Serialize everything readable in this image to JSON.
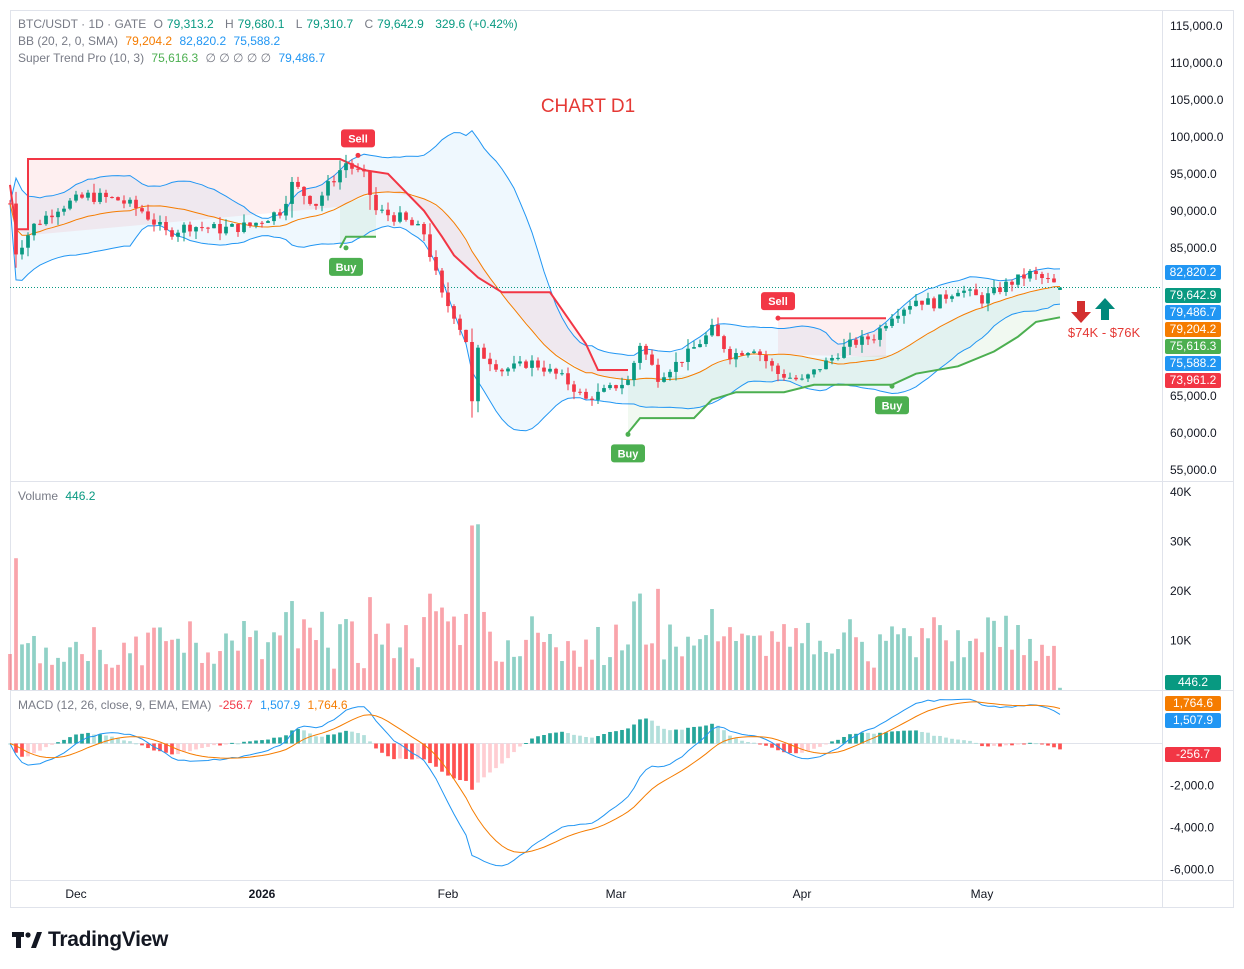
{
  "symbol_header": {
    "symbol": "BTC/USDT · 1D · GATE",
    "open_label": "O",
    "open": "79,313.2",
    "high_label": "H",
    "high": "79,680.1",
    "low_label": "L",
    "low": "79,310.7",
    "close_label": "C",
    "close": "79,642.9",
    "change": "329.6 (+0.42%)"
  },
  "bb_legend": {
    "name": "BB (20, 2, 0, SMA)",
    "basis": "79,204.2",
    "upper": "82,820.2",
    "lower": "75,588.2"
  },
  "st_legend": {
    "name": "Super Trend Pro (10, 3)",
    "value": "75,616.3",
    "dots": "∅ ∅ ∅ ∅ ∅",
    "value2": "79,486.7"
  },
  "annotation_title": "CHART D1",
  "signals": {
    "sell_1": "Sell",
    "sell_2": "Sell",
    "buy_1": "Buy",
    "buy_2": "Buy",
    "buy_3": "Buy"
  },
  "target_range": "$74K - $76K",
  "price_tags": [
    {
      "value": "82,820.2",
      "color": "#2196f3"
    },
    {
      "value": "79,642.9",
      "color": "#089981"
    },
    {
      "value": "79,486.7",
      "color": "#2196f3"
    },
    {
      "value": "79,204.2",
      "color": "#f57c00"
    },
    {
      "value": "75,616.3",
      "color": "#4caf50"
    },
    {
      "value": "75,588.2",
      "color": "#2196f3"
    },
    {
      "value": "73,961.2",
      "color": "#f23645"
    }
  ],
  "volume_legend": {
    "name": "Volume",
    "value": "446.2"
  },
  "volume_tag": "446.2",
  "macd_legend": {
    "name": "MACD (12, 26, close, 9, EMA, EMA)",
    "hist": "-256.7",
    "macd": "1,507.9",
    "signal": "1,764.6"
  },
  "macd_tags": {
    "signal": "1,764.6",
    "macd": "1,507.9",
    "hist": "-256.7"
  },
  "branding": {
    "logo_text": "TradingView"
  },
  "colors": {
    "up": "#089981",
    "down": "#f23645",
    "bb": "#2196f3",
    "basis": "#f57c00",
    "supertrend_up": "#4caf50",
    "supertrend_down": "#f23645",
    "macd": "#2196f3",
    "signal": "#f57c00"
  },
  "chart_data": [
    {
      "type": "candlestick",
      "title": "BTC/USDT · 1D · GATE",
      "y_axis_ticks": [
        "115,000.0",
        "110,000.0",
        "105,000.0",
        "100,000.0",
        "95,000.0",
        "90,000.0",
        "85,000.0",
        "65,000.0",
        "60,000.0",
        "55,000.0"
      ],
      "y_axis_tick_values": [
        115000,
        110000,
        105000,
        100000,
        95000,
        90000,
        85000,
        65000,
        60000,
        55000
      ],
      "ylim": [
        53500,
        117000
      ],
      "x_axis_ticks": [
        "Dec",
        "2026",
        "Feb",
        "Mar",
        "Apr",
        "May"
      ],
      "x_axis_tick_dates": [
        "2025-12-01",
        "2026-01-01",
        "2026-02-01",
        "2026-03-01",
        "2026-04-01",
        "2026-05-01"
      ],
      "xlim_dates": [
        "2025-11-20",
        "2026-05-31"
      ],
      "last_date": "2026-05-14",
      "close_series_anchors": [
        [
          "2025-11-20",
          91000
        ],
        [
          "2025-11-21",
          84500
        ],
        [
          "2025-11-24",
          88000
        ],
        [
          "2025-11-28",
          90500
        ],
        [
          "2025-12-03",
          92000
        ],
        [
          "2025-12-08",
          91500
        ],
        [
          "2025-12-12",
          90000
        ],
        [
          "2025-12-16",
          87000
        ],
        [
          "2025-12-20",
          88000
        ],
        [
          "2025-12-25",
          87500
        ],
        [
          "2025-12-30",
          88000
        ],
        [
          "2026-01-04",
          90000
        ],
        [
          "2026-01-06",
          93500
        ],
        [
          "2026-01-10",
          91000
        ],
        [
          "2026-01-13",
          94500
        ],
        [
          "2026-01-15",
          96500
        ],
        [
          "2026-01-18",
          94500
        ],
        [
          "2026-01-20",
          90000
        ],
        [
          "2026-01-24",
          89000
        ],
        [
          "2026-01-28",
          87000
        ],
        [
          "2026-01-31",
          78500
        ],
        [
          "2026-02-02",
          76000
        ],
        [
          "2026-02-04",
          72500
        ],
        [
          "2026-02-05",
          64000
        ],
        [
          "2026-02-06",
          71000
        ],
        [
          "2026-02-10",
          68500
        ],
        [
          "2026-02-15",
          69500
        ],
        [
          "2026-02-20",
          67500
        ],
        [
          "2026-02-24",
          64500
        ],
        [
          "2026-02-28",
          66000
        ],
        [
          "2026-03-03",
          67000
        ],
        [
          "2026-03-05",
          72000
        ],
        [
          "2026-03-08",
          67500
        ],
        [
          "2026-03-12",
          70000
        ],
        [
          "2026-03-16",
          73000
        ],
        [
          "2026-03-17",
          74000
        ],
        [
          "2026-03-20",
          70500
        ],
        [
          "2026-03-24",
          71500
        ],
        [
          "2026-03-28",
          68000
        ],
        [
          "2026-04-01",
          67000
        ],
        [
          "2026-04-05",
          69500
        ],
        [
          "2026-04-09",
          72000
        ],
        [
          "2026-04-13",
          73000
        ],
        [
          "2026-04-16",
          76000
        ],
        [
          "2026-04-20",
          78000
        ],
        [
          "2026-04-23",
          77500
        ],
        [
          "2026-04-27",
          79500
        ],
        [
          "2026-05-01",
          78000
        ],
        [
          "2026-05-05",
          80000
        ],
        [
          "2026-05-09",
          81500
        ],
        [
          "2026-05-12",
          80500
        ],
        [
          "2026-05-14",
          79642.9
        ]
      ],
      "supertrend_segments": [
        {
          "direction": "down",
          "points": [
            [
              "2025-11-20",
              93500
            ],
            [
              "2025-11-21",
              87500
            ],
            [
              "2025-11-23",
              87500
            ],
            [
              "2025-11-23",
              97000
            ],
            [
              "2026-01-14",
              97000
            ],
            [
              "2026-01-18",
              95500
            ],
            [
              "2026-01-22",
              95000
            ],
            [
              "2026-01-28",
              90000
            ],
            [
              "2026-01-31",
              86500
            ],
            [
              "2026-02-02",
              84000
            ],
            [
              "2026-02-06",
              81000
            ],
            [
              "2026-02-10",
              79000
            ],
            [
              "2026-02-18",
              79000
            ],
            [
              "2026-02-24",
              72000
            ],
            [
              "2026-02-26",
              68500
            ],
            [
              "2026-03-03",
              68500
            ]
          ]
        },
        {
          "direction": "up",
          "points": [
            [
              "2026-01-14",
              85000
            ],
            [
              "2026-01-15",
              86500
            ],
            [
              "2026-01-20",
              86500
            ]
          ]
        },
        {
          "direction": "up",
          "points": [
            [
              "2026-03-03",
              60000
            ],
            [
              "2026-03-05",
              62000
            ],
            [
              "2026-03-14",
              62000
            ],
            [
              "2026-03-17",
              64500
            ],
            [
              "2026-03-21",
              65500
            ],
            [
              "2026-03-29",
              65500
            ],
            [
              "2026-04-03",
              66500
            ],
            [
              "2026-04-16",
              66500
            ]
          ]
        },
        {
          "direction": "down",
          "points": [
            [
              "2026-03-28",
              75500
            ],
            [
              "2026-04-15",
              75500
            ]
          ]
        },
        {
          "direction": "up",
          "points": [
            [
              "2026-04-16",
              66500
            ],
            [
              "2026-04-20",
              68000
            ],
            [
              "2026-04-27",
              69000
            ],
            [
              "2026-05-03",
              71000
            ],
            [
              "2026-05-07",
              73000
            ],
            [
              "2026-05-10",
              75000
            ],
            [
              "2026-05-14",
              75616.3
            ]
          ]
        }
      ],
      "signals": [
        {
          "label": "Sell",
          "date": "2026-01-17",
          "price": 97500
        },
        {
          "label": "Buy",
          "date": "2026-01-15",
          "price": 85000
        },
        {
          "label": "Buy",
          "date": "2026-03-03",
          "price": 59800
        },
        {
          "label": "Sell",
          "date": "2026-03-28",
          "price": 75500
        },
        {
          "label": "Buy",
          "date": "2026-04-16",
          "price": 66300
        }
      ],
      "last_values": {
        "bb_upper": 82820.2,
        "close": 79642.9,
        "supertrend_2": 79486.7,
        "bb_basis": 79204.2,
        "supertrend": 75616.3,
        "bb_lower": 75588.2,
        "marker": 73961.2
      }
    },
    {
      "type": "bar",
      "title": "Volume",
      "y_axis_ticks": [
        "40K",
        "30K",
        "20K",
        "10K"
      ],
      "y_axis_tick_values": [
        40000,
        30000,
        20000,
        10000
      ],
      "ylim": [
        0,
        42000
      ],
      "last_value": 446.2
    },
    {
      "type": "line",
      "title": "MACD (12, 26, close, 9, EMA, EMA)",
      "y_axis_ticks": [
        "-2,000.0",
        "-4,000.0",
        "-6,000.0"
      ],
      "y_axis_tick_values": [
        -2000,
        -4000,
        -6000
      ],
      "ylim": [
        -6500,
        2500
      ],
      "last_values": {
        "histogram": -256.7,
        "macd": 1507.9,
        "signal": 1764.6
      }
    }
  ]
}
